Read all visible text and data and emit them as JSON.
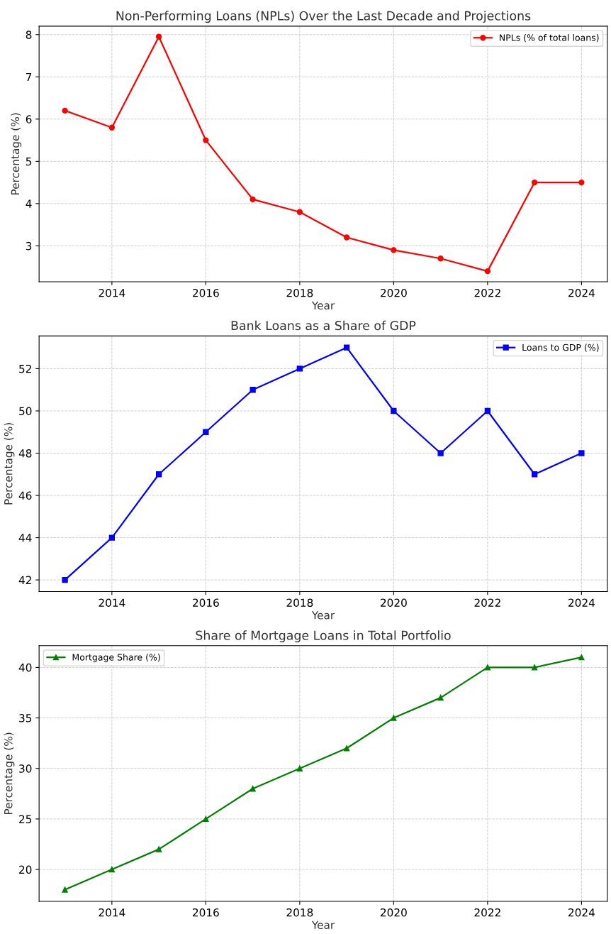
{
  "chart_data": [
    {
      "type": "line",
      "title": "Non-Performing Loans (NPLs) Over the Last Decade and Projections",
      "xlabel": "Year",
      "ylabel": "Percentage (%)",
      "x": [
        2013,
        2014,
        2015,
        2016,
        2017,
        2018,
        2019,
        2020,
        2021,
        2022,
        2023,
        2024
      ],
      "series": [
        {
          "name": "NPLs (% of total loans)",
          "color": "#ff0000",
          "values": [
            6.2,
            5.8,
            7.95,
            5.5,
            4.1,
            3.8,
            3.2,
            2.9,
            2.7,
            2.4,
            4.5,
            4.5
          ]
        }
      ],
      "xlim": [
        2012.45,
        2024.55
      ],
      "xticks": [
        2014,
        2016,
        2018,
        2020,
        2022,
        2024
      ],
      "ylim": [
        2.15,
        8.2
      ],
      "yticks": [
        3,
        4,
        5,
        6,
        7,
        8
      ],
      "grid": true,
      "legend": "top right",
      "marker": "circle",
      "line_style": "solid"
    },
    {
      "type": "line",
      "title": "Bank Loans as a Share of GDP",
      "xlabel": "Year",
      "ylabel": "Percentage (%)",
      "x": [
        2013,
        2014,
        2015,
        2016,
        2017,
        2018,
        2019,
        2020,
        2021,
        2022,
        2023,
        2024
      ],
      "series": [
        {
          "name": "Loans to GDP (%)",
          "color": "#0000ff",
          "values": [
            42,
            44,
            47,
            49,
            51,
            52,
            53,
            50,
            48,
            50,
            47,
            48
          ]
        }
      ],
      "xlim": [
        2012.45,
        2024.55
      ],
      "xticks": [
        2014,
        2016,
        2018,
        2020,
        2022,
        2024
      ],
      "ylim": [
        41.45,
        53.55
      ],
      "yticks": [
        42,
        44,
        46,
        48,
        50,
        52
      ],
      "grid": true,
      "legend": "top right",
      "marker": "square",
      "line_style": "solid"
    },
    {
      "type": "line",
      "title": "Share of Mortgage Loans in Total Portfolio",
      "xlabel": "Year",
      "ylabel": "Percentage (%)",
      "x": [
        2013,
        2014,
        2015,
        2016,
        2017,
        2018,
        2019,
        2020,
        2021,
        2022,
        2023,
        2024
      ],
      "series": [
        {
          "name": "Mortgage Share (%)",
          "color": "#008000",
          "values": [
            18,
            20,
            22,
            25,
            28,
            30,
            32,
            35,
            37,
            40,
            40,
            41
          ]
        }
      ],
      "xlim": [
        2012.45,
        2024.55
      ],
      "xticks": [
        2014,
        2016,
        2018,
        2020,
        2022,
        2024
      ],
      "ylim": [
        16.85,
        42.15
      ],
      "yticks": [
        20,
        25,
        30,
        35,
        40
      ],
      "grid": true,
      "legend": "top left",
      "marker": "triangle",
      "line_style": "solid"
    }
  ]
}
